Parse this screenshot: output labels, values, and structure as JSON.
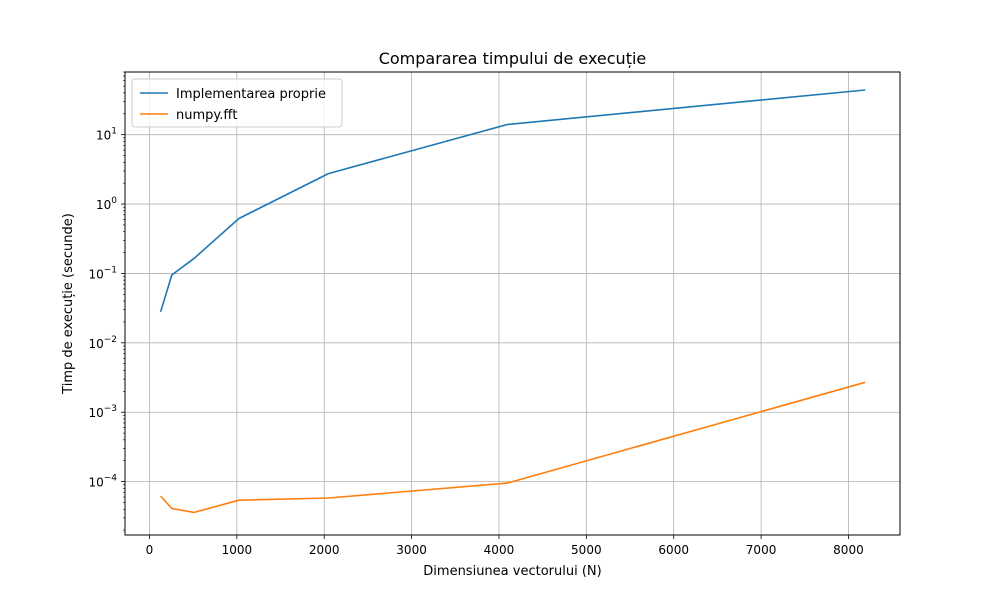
{
  "chart_data": {
    "type": "line",
    "title": "Compararea timpului de execuție",
    "xlabel": "Dimensiunea vectorului (N)",
    "ylabel": "Timp de execuție (secunde)",
    "xscale": "linear",
    "yscale": "log",
    "xlim": [
      -280,
      8590
    ],
    "ylim": [
      1.7e-05,
      80
    ],
    "xticks": [
      0,
      1000,
      2000,
      3000,
      4000,
      5000,
      6000,
      7000,
      8000
    ],
    "xtick_labels": [
      "0",
      "1000",
      "2000",
      "3000",
      "4000",
      "5000",
      "6000",
      "7000",
      "8000"
    ],
    "yticks": [
      0.0001,
      0.001,
      0.01,
      0.1,
      1,
      10
    ],
    "ytick_base": "10",
    "ytick_exponents": [
      "−4",
      "−3",
      "−2",
      "−1",
      "0",
      "1"
    ],
    "grid": true,
    "legend_position": "top-left",
    "x": [
      128,
      256,
      512,
      1024,
      2048,
      4096,
      8192
    ],
    "series": [
      {
        "name": "Implementarea proprie",
        "color": "#1f77b4",
        "values": [
          0.028,
          0.095,
          0.165,
          0.62,
          2.75,
          14.0,
          44.0
        ]
      },
      {
        "name": "numpy.fft",
        "color": "#ff7f0e",
        "values": [
          6.2e-05,
          4.1e-05,
          3.6e-05,
          5.4e-05,
          5.8e-05,
          9.5e-05,
          0.0027
        ]
      }
    ]
  }
}
